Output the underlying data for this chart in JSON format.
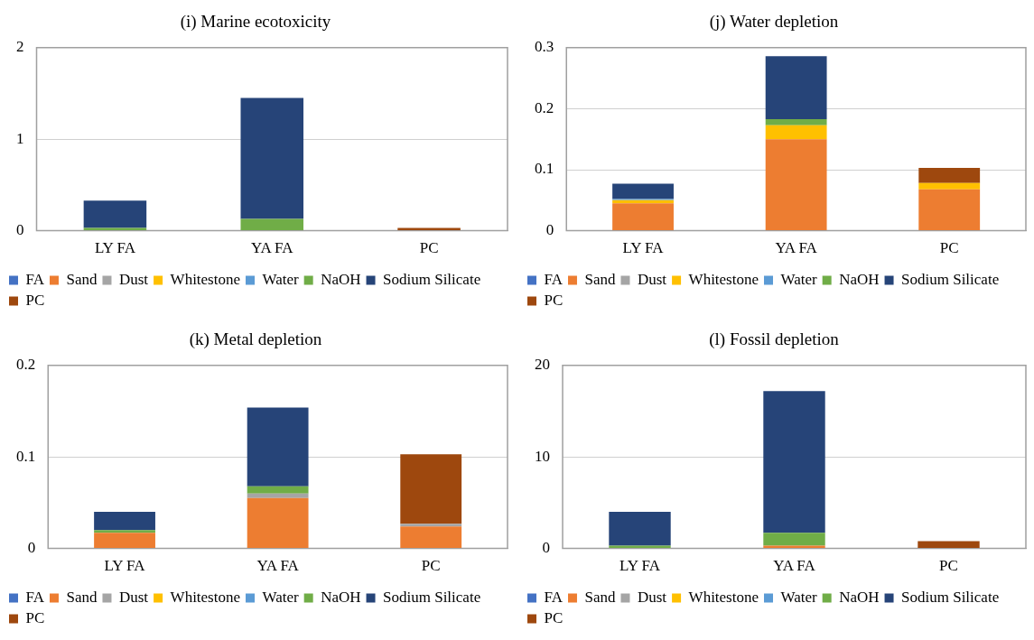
{
  "chart_data": [
    {
      "type": "bar",
      "title": "(i) Marine ecotoxicity",
      "categories": [
        "LY FA",
        "YA FA",
        "PC"
      ],
      "stacked": true,
      "ylim": [
        0,
        2
      ],
      "yticks": [
        0,
        1,
        2
      ],
      "grid": "y",
      "legend": "bottom",
      "series": [
        {
          "name": "FA",
          "color": "#4472c4",
          "values": [
            null,
            null,
            null
          ]
        },
        {
          "name": "Sand",
          "color": "#ed7d31",
          "values": [
            null,
            null,
            null
          ]
        },
        {
          "name": "Dust",
          "color": "#a5a5a5",
          "values": [
            null,
            null,
            null
          ]
        },
        {
          "name": "Whitestone",
          "color": "#ffc000",
          "values": [
            null,
            null,
            null
          ]
        },
        {
          "name": "Water",
          "color": "#5b9bd5",
          "values": [
            null,
            null,
            null
          ]
        },
        {
          "name": "NaOH",
          "color": "#70ad47",
          "values": [
            0.03,
            0.13,
            null
          ]
        },
        {
          "name": "Sodium Silicate",
          "color": "#264478",
          "values": [
            0.3,
            1.32,
            null
          ]
        },
        {
          "name": "PC",
          "color": "#9e480e",
          "values": [
            null,
            null,
            0.03
          ]
        }
      ]
    },
    {
      "type": "bar",
      "title": "(j) Water depletion",
      "categories": [
        "LY FA",
        "YA FA",
        "PC"
      ],
      "stacked": true,
      "ylim": [
        0,
        0.3
      ],
      "yticks": [
        0,
        0.1,
        0.2,
        0.3
      ],
      "grid": "y",
      "legend": "bottom",
      "series": [
        {
          "name": "FA",
          "color": "#4472c4",
          "values": [
            null,
            null,
            null
          ]
        },
        {
          "name": "Sand",
          "color": "#ed7d31",
          "values": [
            0.045,
            0.15,
            0.068
          ]
        },
        {
          "name": "Dust",
          "color": "#a5a5a5",
          "values": [
            null,
            null,
            null
          ]
        },
        {
          "name": "Whitestone",
          "color": "#ffc000",
          "values": [
            0.005,
            0.023,
            0.01
          ]
        },
        {
          "name": "Water",
          "color": "#5b9bd5",
          "values": [
            0.002,
            null,
            null
          ]
        },
        {
          "name": "NaOH",
          "color": "#70ad47",
          "values": [
            null,
            0.01,
            null
          ]
        },
        {
          "name": "Sodium Silicate",
          "color": "#264478",
          "values": [
            0.025,
            0.103,
            null
          ]
        },
        {
          "name": "PC",
          "color": "#9e480e",
          "values": [
            null,
            null,
            0.025
          ]
        }
      ]
    },
    {
      "type": "bar",
      "title": "(k) Metal depletion",
      "categories": [
        "LY FA",
        "YA FA",
        "PC"
      ],
      "stacked": true,
      "ylim": [
        0,
        0.2
      ],
      "yticks": [
        0,
        0.1,
        0.2
      ],
      "grid": "y",
      "legend": "bottom",
      "series": [
        {
          "name": "FA",
          "color": "#4472c4",
          "values": [
            null,
            null,
            null
          ]
        },
        {
          "name": "Sand",
          "color": "#ed7d31",
          "values": [
            0.017,
            0.055,
            0.024
          ]
        },
        {
          "name": "Dust",
          "color": "#a5a5a5",
          "values": [
            null,
            0.005,
            0.003
          ]
        },
        {
          "name": "Whitestone",
          "color": "#ffc000",
          "values": [
            null,
            null,
            null
          ]
        },
        {
          "name": "Water",
          "color": "#5b9bd5",
          "values": [
            null,
            null,
            null
          ]
        },
        {
          "name": "NaOH",
          "color": "#70ad47",
          "values": [
            0.003,
            0.008,
            null
          ]
        },
        {
          "name": "Sodium Silicate",
          "color": "#264478",
          "values": [
            0.02,
            0.086,
            null
          ]
        },
        {
          "name": "PC",
          "color": "#9e480e",
          "values": [
            null,
            null,
            0.076
          ]
        }
      ]
    },
    {
      "type": "bar",
      "title": "(l) Fossil depletion",
      "categories": [
        "LY FA",
        "YA FA",
        "PC"
      ],
      "stacked": true,
      "ylim": [
        0,
        20
      ],
      "yticks": [
        0,
        10,
        20
      ],
      "grid": "y",
      "legend": "bottom",
      "series": [
        {
          "name": "FA",
          "color": "#4472c4",
          "values": [
            null,
            null,
            null
          ]
        },
        {
          "name": "Sand",
          "color": "#ed7d31",
          "values": [
            null,
            0.3,
            null
          ]
        },
        {
          "name": "Dust",
          "color": "#a5a5a5",
          "values": [
            null,
            null,
            null
          ]
        },
        {
          "name": "Whitestone",
          "color": "#ffc000",
          "values": [
            null,
            null,
            null
          ]
        },
        {
          "name": "Water",
          "color": "#5b9bd5",
          "values": [
            null,
            null,
            null
          ]
        },
        {
          "name": "NaOH",
          "color": "#70ad47",
          "values": [
            0.3,
            1.4,
            null
          ]
        },
        {
          "name": "Sodium Silicate",
          "color": "#264478",
          "values": [
            3.7,
            15.5,
            null
          ]
        },
        {
          "name": "PC",
          "color": "#9e480e",
          "values": [
            null,
            null,
            0.8
          ]
        }
      ]
    }
  ]
}
